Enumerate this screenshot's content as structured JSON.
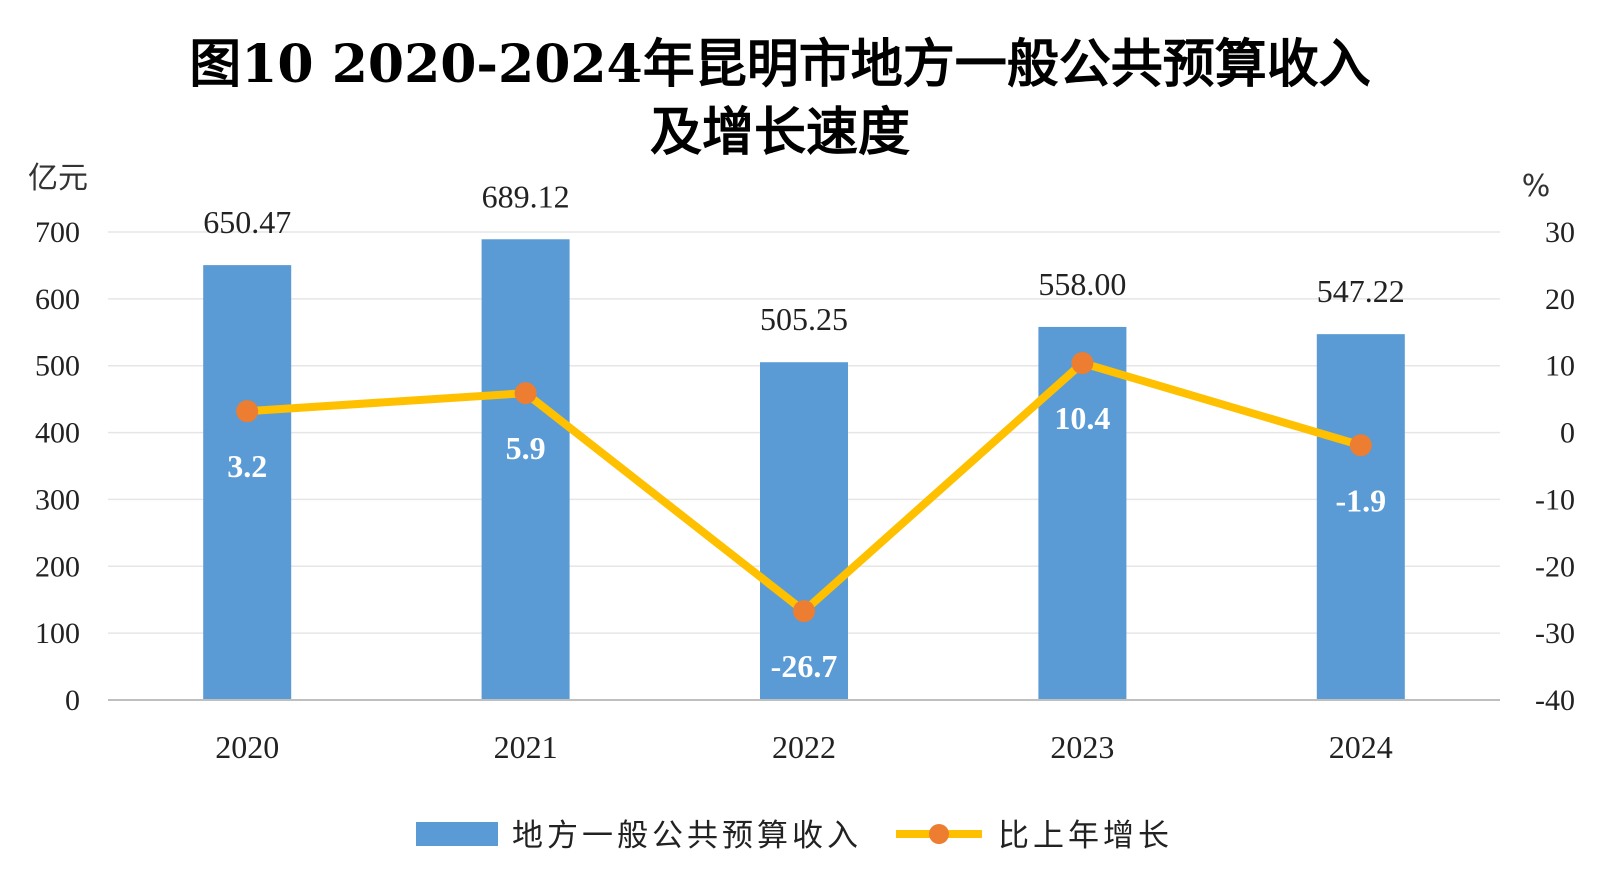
{
  "chart_data": {
    "type": "bar+line",
    "title_lines": [
      "图10 2020-2024年昆明市地方一般公共预算收入",
      "及增长速度"
    ],
    "categories": [
      "2020",
      "2021",
      "2022",
      "2023",
      "2024"
    ],
    "y_left": {
      "unit": "亿元",
      "min": 0,
      "max": 700,
      "step": 100,
      "ticks": [
        "0",
        "100",
        "200",
        "300",
        "400",
        "500",
        "600",
        "700"
      ]
    },
    "y_right": {
      "unit": "%",
      "min": -40,
      "max": 30,
      "step": 10,
      "ticks": [
        "-40",
        "-30",
        "-20",
        "-10",
        "0",
        "10",
        "20",
        "30"
      ]
    },
    "grid": true,
    "legend_position": "bottom",
    "series": [
      {
        "name": "地方一般公共预算收入",
        "type": "bar",
        "axis": "left",
        "color": "#5b9bd5",
        "values": [
          650.47,
          689.12,
          505.25,
          558.0,
          547.22
        ],
        "labels": [
          "650.47",
          "689.12",
          "505.25",
          "558.00",
          "547.22"
        ]
      },
      {
        "name": "比上年增长",
        "type": "line",
        "axis": "right",
        "color": "#ffc000",
        "marker_color": "#ed7d31",
        "values": [
          3.2,
          5.9,
          -26.7,
          10.4,
          -1.9
        ],
        "labels": [
          "3.2",
          "5.9",
          "-26.7",
          "10.4",
          "-1.9"
        ]
      }
    ]
  }
}
